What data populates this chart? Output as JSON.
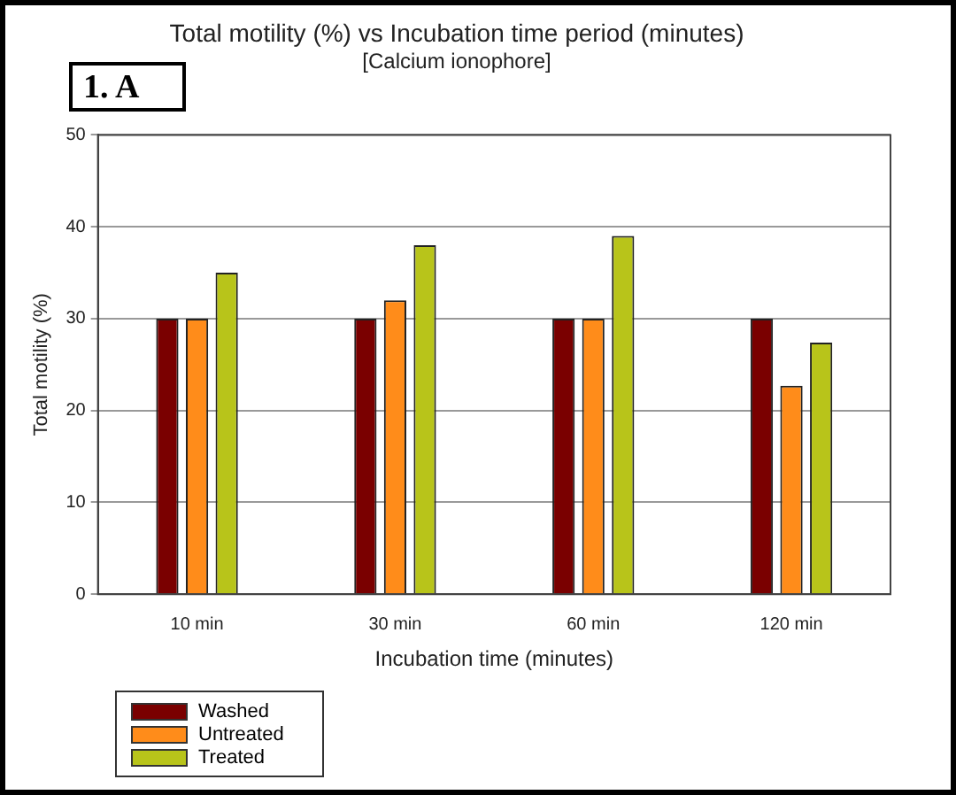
{
  "chart_data": {
    "type": "bar",
    "title": "Total motility (%) vs Incubation time period (minutes)",
    "subtitle": "[Calcium ionophore]",
    "annotations": [
      "1. A"
    ],
    "xlabel": "Incubation time (minutes)",
    "ylabel": "Total motility (%)",
    "categories": [
      "10 min",
      "30 min",
      "60 min",
      "120 min"
    ],
    "series": [
      {
        "name": "Washed",
        "color": "#7a0000",
        "values": [
          30,
          30,
          30,
          30
        ]
      },
      {
        "name": "Untreated",
        "color": "#ff8c1a",
        "values": [
          30,
          32,
          30,
          22.7
        ]
      },
      {
        "name": "Treated",
        "color": "#b8c41a",
        "values": [
          35,
          38,
          39,
          27.4
        ]
      }
    ],
    "ylim": [
      0,
      50
    ],
    "yticks": [
      0,
      10,
      20,
      30,
      40,
      50
    ],
    "grid": "y",
    "legend": "bottom left"
  }
}
